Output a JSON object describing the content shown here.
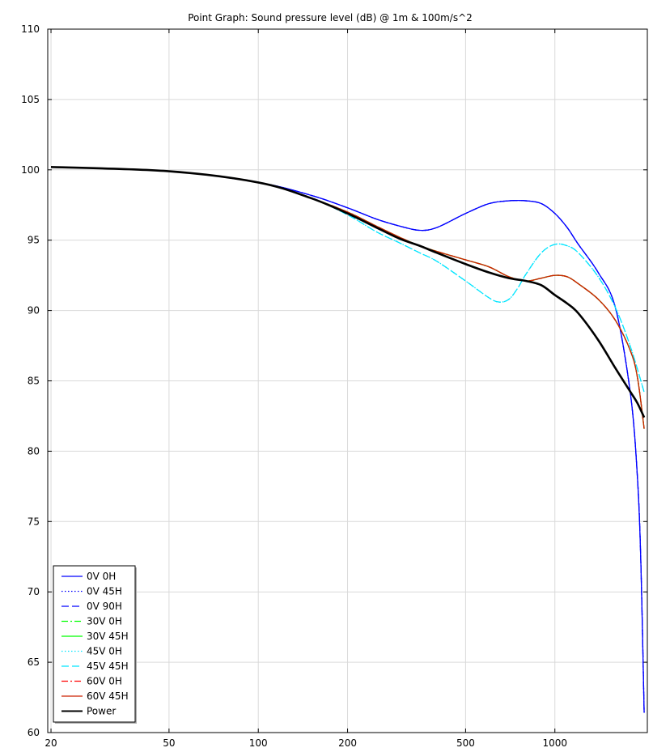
{
  "chart_data": {
    "type": "line",
    "title": "Point Graph: Sound pressure level (dB) @ 1m & 100m/s^2",
    "xlabel": "",
    "ylabel": "",
    "x_scale": "log",
    "xlim": [
      19.5,
      2050
    ],
    "ylim": [
      60,
      110
    ],
    "x_ticks": [
      20,
      50,
      100,
      200,
      500,
      1000
    ],
    "x_tick_labels": [
      "20",
      "50",
      "100",
      "200",
      "500",
      "1000"
    ],
    "y_ticks": [
      60,
      65,
      70,
      75,
      80,
      85,
      90,
      95,
      100,
      105,
      110
    ],
    "y_tick_labels": [
      "60",
      "65",
      "70",
      "75",
      "80",
      "85",
      "90",
      "95",
      "100",
      "105",
      "110"
    ],
    "grid": true,
    "legend_position": "bottom-left",
    "series": [
      {
        "name": "0V 0H",
        "color": "#0000ff",
        "dash": "solid",
        "x": [
          20,
          50,
          100,
          150,
          200,
          250,
          300,
          350,
          400,
          500,
          600,
          700,
          800,
          900,
          1000,
          1100,
          1200,
          1400,
          1600,
          1800,
          1900,
          1950,
          2000
        ],
        "y": [
          100.2,
          99.9,
          99.1,
          98.2,
          97.3,
          96.5,
          96.0,
          95.7,
          95.9,
          96.9,
          97.6,
          97.8,
          97.8,
          97.6,
          96.9,
          95.9,
          94.7,
          92.7,
          90.2,
          84.0,
          78.0,
          72.0,
          61.4
        ]
      },
      {
        "name": "0V 45H",
        "color": "#0000ff",
        "dash": "dot",
        "x": [
          20,
          50,
          100,
          150,
          200,
          250,
          300,
          350,
          400,
          500,
          600,
          700,
          800,
          900,
          1000,
          1100,
          1200,
          1400,
          1600,
          1800,
          1900,
          1950,
          2000
        ],
        "y": [
          100.2,
          99.9,
          99.1,
          98.2,
          97.3,
          96.5,
          96.0,
          95.7,
          95.9,
          96.9,
          97.6,
          97.8,
          97.8,
          97.6,
          96.9,
          95.9,
          94.7,
          92.7,
          90.2,
          84.0,
          78.0,
          72.0,
          61.4
        ]
      },
      {
        "name": "0V 90H",
        "color": "#0000ff",
        "dash": "dash",
        "x": [
          20,
          50,
          100,
          150,
          200,
          250,
          300,
          350,
          400,
          500,
          600,
          700,
          800,
          900,
          1000,
          1100,
          1200,
          1400,
          1600,
          1800,
          1900,
          1950,
          2000
        ],
        "y": [
          100.2,
          99.9,
          99.1,
          98.2,
          97.3,
          96.5,
          96.0,
          95.7,
          95.9,
          96.9,
          97.6,
          97.8,
          97.8,
          97.6,
          96.9,
          95.9,
          94.7,
          92.7,
          90.2,
          84.0,
          78.0,
          72.0,
          61.4
        ]
      },
      {
        "name": "30V 0H",
        "color": "#00ff00",
        "dash": "dashdot",
        "x": [
          20,
          50,
          100,
          150,
          200,
          250,
          300,
          350,
          400,
          500,
          600,
          700,
          800,
          900,
          1000,
          1100,
          1200,
          1400,
          1600,
          1800,
          1900,
          2000
        ],
        "y": [
          100.2,
          99.9,
          99.1,
          98.0,
          97.0,
          96.0,
          95.2,
          94.6,
          94.2,
          93.6,
          93.1,
          92.4,
          92.1,
          92.3,
          92.5,
          92.4,
          91.9,
          90.8,
          89.3,
          87.1,
          85.2,
          81.6
        ]
      },
      {
        "name": "30V 45H",
        "color": "#00ff00",
        "dash": "solid",
        "x": [
          20,
          50,
          100,
          150,
          200,
          250,
          300,
          350,
          400,
          500,
          600,
          700,
          800,
          900,
          1000,
          1100,
          1200,
          1400,
          1600,
          1800,
          1900,
          2000
        ],
        "y": [
          100.2,
          99.9,
          99.1,
          98.0,
          97.0,
          96.0,
          95.2,
          94.6,
          94.2,
          93.6,
          93.1,
          92.4,
          92.1,
          92.3,
          92.5,
          92.4,
          91.9,
          90.8,
          89.3,
          87.1,
          85.2,
          81.6
        ]
      },
      {
        "name": "45V 0H",
        "color": "#00e5ff",
        "dash": "dot",
        "x": [
          20,
          50,
          100,
          150,
          200,
          250,
          300,
          350,
          400,
          500,
          600,
          650,
          700,
          750,
          800,
          900,
          1000,
          1100,
          1200,
          1400,
          1600,
          1800,
          2000
        ],
        "y": [
          100.2,
          99.9,
          99.1,
          98.0,
          96.8,
          95.6,
          94.8,
          94.1,
          93.5,
          92.1,
          90.9,
          90.6,
          90.8,
          91.6,
          92.6,
          94.1,
          94.7,
          94.6,
          94.1,
          92.4,
          90.2,
          87.4,
          84.2
        ]
      },
      {
        "name": "45V 45H",
        "color": "#00e5ff",
        "dash": "dash",
        "x": [
          20,
          50,
          100,
          150,
          200,
          250,
          300,
          350,
          400,
          500,
          600,
          650,
          700,
          750,
          800,
          900,
          1000,
          1100,
          1200,
          1400,
          1600,
          1800,
          2000
        ],
        "y": [
          100.2,
          99.9,
          99.1,
          98.0,
          96.8,
          95.6,
          94.8,
          94.1,
          93.5,
          92.1,
          90.9,
          90.6,
          90.8,
          91.6,
          92.6,
          94.1,
          94.7,
          94.6,
          94.1,
          92.4,
          90.2,
          87.4,
          84.2
        ]
      },
      {
        "name": "60V 0H",
        "color": "#ff0000",
        "dash": "dashdot",
        "x": [
          20,
          50,
          100,
          150,
          200,
          250,
          300,
          350,
          400,
          500,
          600,
          700,
          800,
          900,
          1000,
          1100,
          1200,
          1400,
          1600,
          1800,
          1900,
          2000
        ],
        "y": [
          100.2,
          99.9,
          99.1,
          98.0,
          97.0,
          96.0,
          95.2,
          94.6,
          94.2,
          93.6,
          93.1,
          92.4,
          92.1,
          92.3,
          92.5,
          92.4,
          91.9,
          90.8,
          89.3,
          87.1,
          85.2,
          81.6
        ]
      },
      {
        "name": "60V 45H",
        "color": "#cc2200",
        "dash": "solid",
        "x": [
          20,
          50,
          100,
          150,
          200,
          250,
          300,
          350,
          400,
          500,
          600,
          700,
          800,
          900,
          1000,
          1100,
          1200,
          1400,
          1600,
          1800,
          1900,
          2000
        ],
        "y": [
          100.2,
          99.9,
          99.1,
          98.0,
          97.0,
          96.0,
          95.2,
          94.6,
          94.2,
          93.6,
          93.1,
          92.4,
          92.1,
          92.3,
          92.5,
          92.4,
          91.9,
          90.8,
          89.3,
          87.1,
          85.2,
          81.6
        ]
      },
      {
        "name": "Power",
        "color": "#000000",
        "dash": "solid",
        "bold": true,
        "x": [
          20,
          50,
          100,
          150,
          200,
          250,
          300,
          350,
          400,
          500,
          600,
          700,
          800,
          900,
          1000,
          1100,
          1200,
          1400,
          1600,
          1800,
          1900,
          2000
        ],
        "y": [
          100.2,
          99.9,
          99.1,
          98.0,
          96.9,
          95.9,
          95.1,
          94.6,
          94.1,
          93.3,
          92.7,
          92.3,
          92.1,
          91.8,
          91.1,
          90.5,
          89.8,
          87.9,
          85.9,
          84.2,
          83.4,
          82.4
        ]
      }
    ]
  }
}
